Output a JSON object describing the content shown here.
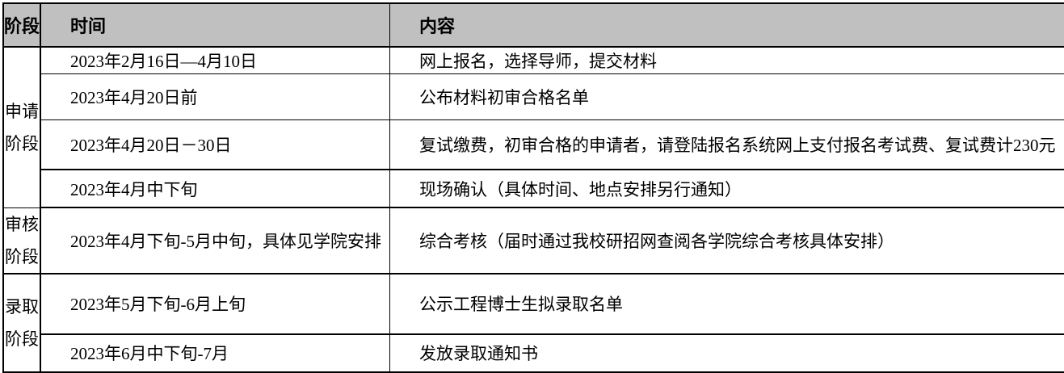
{
  "colors": {
    "header_bg": "#c0c0c0",
    "border": "#000000",
    "text": "#000000"
  },
  "table": {
    "header": {
      "stage": "阶段",
      "time": "时间",
      "content": "内容"
    },
    "stage_groups": [
      {
        "line1": "申请",
        "line2": "阶段"
      },
      {
        "line1": "审核",
        "line2": "阶段"
      },
      {
        "line1": "录取",
        "line2": "阶段"
      }
    ],
    "rows": [
      {
        "time": "2023年2月16日—4月10日",
        "content": "网上报名，选择导师，提交材料"
      },
      {
        "time": "2023年4月20日前",
        "content": "公布材料初审合格名单"
      },
      {
        "time": "2023年4月20日－30日",
        "content": "复试缴费，初审合格的申请者，请登陆报名系统网上支付报名考试费、复试费计230元"
      },
      {
        "time": "2023年4月中下旬",
        "content": "现场确认（具体时间、地点安排另行通知）"
      },
      {
        "time": "2023年4月下旬-5月中旬，具体见学院安排",
        "content": "综合考核（届时通过我校研招网查阅各学院综合考核具体安排）"
      },
      {
        "time": "2023年5月下旬-6月上旬",
        "content": "公示工程博士生拟录取名单"
      },
      {
        "time": "2023年6月中下旬-7月",
        "content": "发放录取通知书"
      }
    ]
  }
}
